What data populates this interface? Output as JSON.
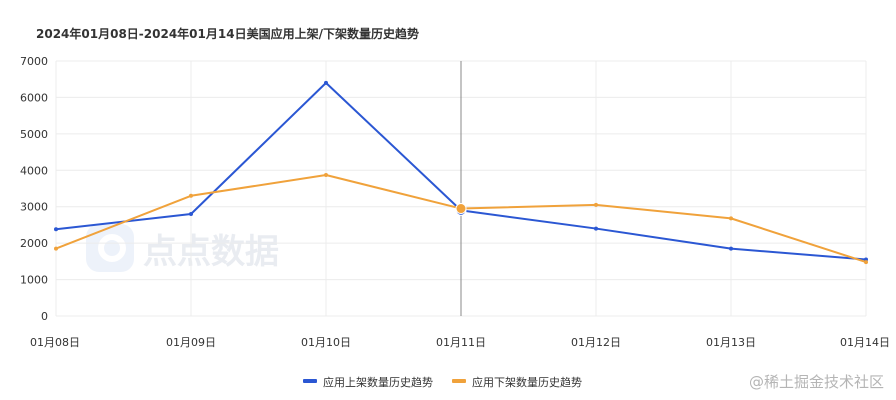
{
  "chart_data": {
    "type": "line",
    "title": "2024年01月08日-2024年01月14日美国应用上架/下架数量历史趋势",
    "categories": [
      "01月08日",
      "01月09日",
      "01月10日",
      "01月11日",
      "01月12日",
      "01月13日",
      "01月14日"
    ],
    "ylim": [
      0,
      7000
    ],
    "yticks": [
      0,
      1000,
      2000,
      3000,
      4000,
      5000,
      6000,
      7000
    ],
    "grid": true,
    "hover_index": 3,
    "legend_position": "bottom-center",
    "series": [
      {
        "name": "应用上架数量历史趋势",
        "color": "#2b57d3",
        "values": [
          2380,
          2800,
          6400,
          2900,
          2400,
          1850,
          1550
        ]
      },
      {
        "name": "应用下架数量历史趋势",
        "color": "#f0a23b",
        "values": [
          1850,
          3300,
          3870,
          2950,
          3050,
          2680,
          1480
        ]
      }
    ]
  },
  "watermark": {
    "logo_text": "点点数据",
    "site_text": "@稀土掘金技术社区"
  }
}
